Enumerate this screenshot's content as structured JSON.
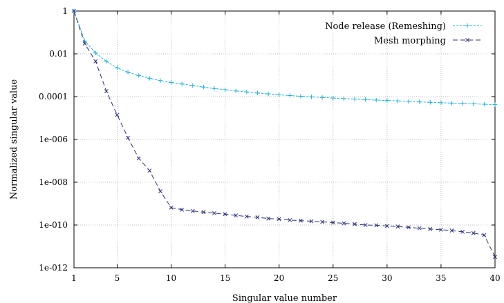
{
  "chart_data": {
    "type": "line",
    "xlabel": "Singular value number",
    "ylabel": "Normalized singular value",
    "xlim": [
      1,
      40
    ],
    "ylim": [
      1e-12,
      1
    ],
    "yscale": "log",
    "xticks": [
      1,
      5,
      10,
      15,
      20,
      25,
      30,
      35,
      40
    ],
    "yticks": [
      1,
      0.01,
      0.0001,
      1e-06,
      1e-08,
      1e-10,
      1e-12
    ],
    "ytick_labels": [
      "1",
      "0.01",
      "0.0001",
      "1e-006",
      "1e-008",
      "1e-010",
      "1e-012"
    ],
    "grid": true,
    "legend_position": "top-right",
    "x": [
      1,
      2,
      3,
      4,
      5,
      6,
      7,
      8,
      9,
      10,
      11,
      12,
      13,
      14,
      15,
      16,
      17,
      18,
      19,
      20,
      21,
      22,
      23,
      24,
      25,
      26,
      27,
      28,
      29,
      30,
      31,
      32,
      33,
      34,
      35,
      36,
      37,
      38,
      39,
      40
    ],
    "series": [
      {
        "name": "Node release (Remeshing)",
        "color": "#1fb0d8",
        "marker": "plus",
        "dash": "3 2",
        "values": [
          1,
          0.04,
          0.011,
          0.0045,
          0.0022,
          0.0014,
          0.00097,
          0.00072,
          0.00056,
          0.00046,
          0.00039,
          0.00033,
          0.00028,
          0.00024,
          0.00021,
          0.000185,
          0.000165,
          0.000148,
          0.000134,
          0.000122,
          0.000112,
          0.000104,
          9.7e-05,
          9.1e-05,
          8.6e-05,
          8.1e-05,
          7.7e-05,
          7.3e-05,
          6.9e-05,
          6.6e-05,
          6.3e-05,
          6e-05,
          5.7e-05,
          5.4e-05,
          5.2e-05,
          5e-05,
          4.8e-05,
          4.6e-05,
          4.4e-05,
          4.2e-05
        ]
      },
      {
        "name": "Mesh morphing",
        "color": "#2c2f7a",
        "marker": "cross",
        "dash": "7 4",
        "values": [
          1,
          0.03,
          0.0045,
          0.00018,
          1.4e-05,
          1.2e-06,
          1.3e-07,
          3.5e-08,
          3.8e-09,
          6.5e-10,
          5.2e-10,
          4.5e-10,
          4e-10,
          3.6e-10,
          3.2e-10,
          2.8e-10,
          2.5e-10,
          2.3e-10,
          2e-10,
          1.9e-10,
          1.7e-10,
          1.6e-10,
          1.5e-10,
          1.4e-10,
          1.3e-10,
          1.2e-10,
          1.1e-10,
          1e-10,
          9.7e-11,
          9e-11,
          8.5e-11,
          7.8e-11,
          7.1e-11,
          6.5e-11,
          6e-11,
          5.5e-11,
          4.8e-11,
          4.2e-11,
          3.4e-11,
          3.2e-12
        ]
      }
    ]
  }
}
